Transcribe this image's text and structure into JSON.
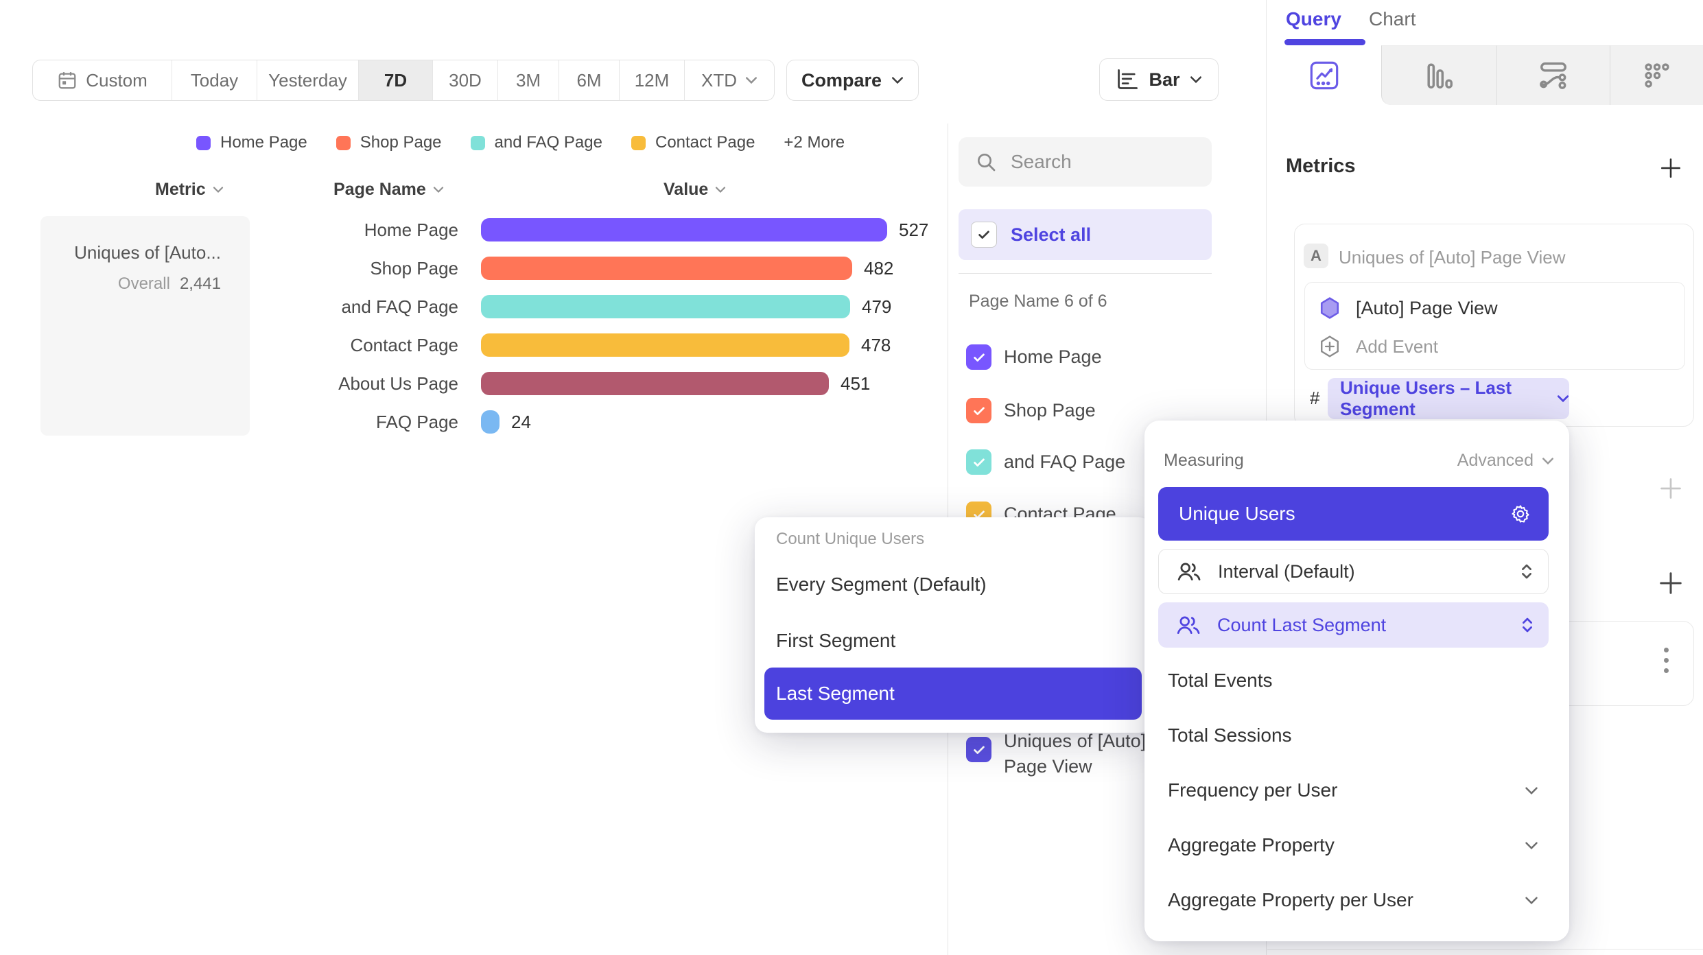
{
  "colors": {
    "accent": "#4F44E0",
    "accent_button": "#4C42DE",
    "pill_bg": "#E4E1FA",
    "highlight_row_bg": "#E7E4FB",
    "select_all_bg": "#EBE9FB",
    "border": "#E6E6E6"
  },
  "toolbar": {
    "date_ranges": [
      "Custom",
      "Today",
      "Yesterday",
      "7D",
      "30D",
      "3M",
      "6M",
      "12M",
      "XTD"
    ],
    "active_range": "7D",
    "compare_label": "Compare",
    "chart_type_label": "Bar"
  },
  "legend": {
    "items": [
      {
        "label": "Home Page",
        "color": "#7856FF"
      },
      {
        "label": "Shop Page",
        "color": "#FF7557"
      },
      {
        "label": "and FAQ Page",
        "color": "#80E1D9"
      },
      {
        "label": "Contact Page",
        "color": "#F8BC3B"
      }
    ],
    "more_label": "+2 More"
  },
  "table": {
    "headers": [
      "Metric",
      "Page Name",
      "Value"
    ],
    "metric_name": "Uniques of [Auto...",
    "overall_label": "Overall",
    "overall_value": "2,441"
  },
  "chart_data": {
    "type": "bar",
    "orientation": "horizontal",
    "title": "Uniques of [Auto] Page View",
    "categories": [
      "Home Page",
      "Shop Page",
      "and FAQ Page",
      "Contact Page",
      "About Us Page",
      "FAQ Page"
    ],
    "values": [
      527,
      482,
      479,
      478,
      451,
      24
    ],
    "series_colors": [
      "#7856FF",
      "#FF7557",
      "#80E1D9",
      "#F8BC3B",
      "#B2596E",
      "#7AB8F2"
    ],
    "overall_total": 2441,
    "xlim": [
      0,
      560
    ]
  },
  "filter_panel": {
    "search_placeholder": "Search",
    "select_all_label": "Select all",
    "group_label": "Page Name 6 of 6",
    "items": [
      {
        "label": "Home Page",
        "color": "#7856FF",
        "checked": true
      },
      {
        "label": "Shop Page",
        "color": "#FF7557",
        "checked": true
      },
      {
        "label": "and FAQ Page",
        "color": "#80E1D9",
        "checked": true
      },
      {
        "label": "Contact Page",
        "color": "#F8BC3B",
        "checked": true
      }
    ],
    "metric_item": {
      "label": "Uniques of [Auto] Page View",
      "color": "#5A4FE0",
      "checked": true
    }
  },
  "segment_popup": {
    "title": "Count Unique Users",
    "options": [
      "Every Segment (Default)",
      "First Segment",
      "Last Segment"
    ],
    "selected": "Last Segment"
  },
  "measuring_popup": {
    "title": "Measuring",
    "advanced_label": "Advanced",
    "selected_option": "Unique Users",
    "interval_label": "Interval (Default)",
    "count_label": "Count Last Segment",
    "simple_options": [
      "Total Events",
      "Total Sessions"
    ],
    "expandable_options": [
      "Frequency per User",
      "Aggregate Property",
      "Aggregate Property per User"
    ]
  },
  "query_panel": {
    "tabs": [
      "Query",
      "Chart"
    ],
    "active_tab": "Query",
    "metrics_title": "Metrics",
    "metric_letter": "A",
    "metric_title": "Uniques of [Auto] Page View",
    "event_name": "[Auto] Page View",
    "add_event_label": "Add Event",
    "hash_symbol": "#",
    "measurement_label": "Unique Users – Last Segment"
  }
}
